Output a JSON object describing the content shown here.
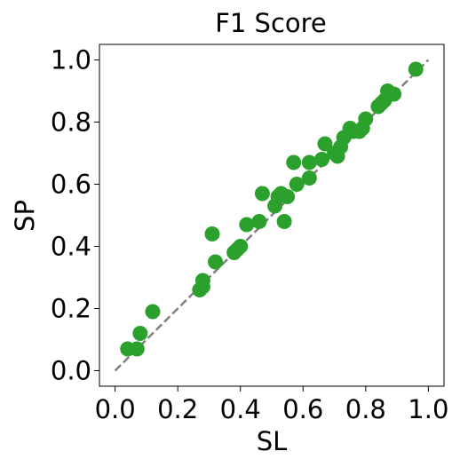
{
  "chart_data": {
    "type": "scatter",
    "title": "F1 Score",
    "xlabel": "SL",
    "ylabel": "SP",
    "xlim": [
      -0.05,
      1.05
    ],
    "ylim": [
      -0.05,
      1.05
    ],
    "grid": false,
    "x_ticks": [
      "0.0",
      "0.2",
      "0.4",
      "0.6",
      "0.8",
      "1.0"
    ],
    "y_ticks": [
      "0.0",
      "0.2",
      "0.4",
      "0.6",
      "0.8",
      "1.0"
    ],
    "x_tick_values": [
      0.0,
      0.2,
      0.4,
      0.6,
      0.8,
      1.0
    ],
    "y_tick_values": [
      0.0,
      0.2,
      0.4,
      0.6,
      0.8,
      1.0
    ],
    "reference_line": {
      "x": [
        0.0,
        1.0
      ],
      "y": [
        0.0,
        1.0
      ],
      "style": "dashed",
      "color": "#808080"
    },
    "marker_color": "#2ca02c",
    "series": [
      {
        "points": [
          [
            0.04,
            0.07
          ],
          [
            0.07,
            0.07
          ],
          [
            0.08,
            0.12
          ],
          [
            0.12,
            0.19
          ],
          [
            0.27,
            0.26
          ],
          [
            0.28,
            0.27
          ],
          [
            0.28,
            0.29
          ],
          [
            0.31,
            0.44
          ],
          [
            0.32,
            0.35
          ],
          [
            0.38,
            0.38
          ],
          [
            0.39,
            0.39
          ],
          [
            0.4,
            0.4
          ],
          [
            0.42,
            0.47
          ],
          [
            0.46,
            0.48
          ],
          [
            0.47,
            0.57
          ],
          [
            0.51,
            0.53
          ],
          [
            0.52,
            0.56
          ],
          [
            0.53,
            0.57
          ],
          [
            0.54,
            0.48
          ],
          [
            0.55,
            0.56
          ],
          [
            0.57,
            0.67
          ],
          [
            0.58,
            0.6
          ],
          [
            0.62,
            0.67
          ],
          [
            0.62,
            0.62
          ],
          [
            0.66,
            0.68
          ],
          [
            0.67,
            0.73
          ],
          [
            0.7,
            0.7
          ],
          [
            0.71,
            0.69
          ],
          [
            0.72,
            0.72
          ],
          [
            0.73,
            0.75
          ],
          [
            0.75,
            0.78
          ],
          [
            0.76,
            0.77
          ],
          [
            0.78,
            0.77
          ],
          [
            0.79,
            0.78
          ],
          [
            0.8,
            0.81
          ],
          [
            0.84,
            0.85
          ],
          [
            0.85,
            0.86
          ],
          [
            0.86,
            0.87
          ],
          [
            0.87,
            0.9
          ],
          [
            0.89,
            0.89
          ],
          [
            0.96,
            0.97
          ]
        ]
      }
    ]
  }
}
